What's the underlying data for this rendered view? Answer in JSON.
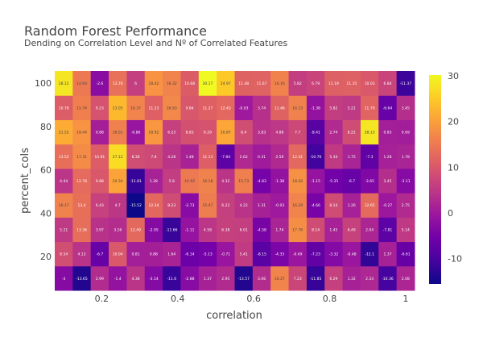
{
  "chart_data": {
    "type": "heatmap",
    "title": "Random Forest Performance",
    "subtitle": "Dending on Correlation Level and Nº of Correlated Features",
    "xlabel": "correlation",
    "ylabel": "percent_cols",
    "colorscale": "plasma",
    "zrange": [
      -15.52,
      30.17
    ],
    "x": [
      0.1,
      0.1474,
      0.1947,
      0.2421,
      0.2895,
      0.3368,
      0.3842,
      0.4316,
      0.4789,
      0.5263,
      0.5737,
      0.6211,
      0.6684,
      0.7158,
      0.7632,
      0.8105,
      0.8579,
      0.9053,
      0.9526,
      1.0
    ],
    "y": [
      10,
      21.25,
      32.5,
      43.75,
      55,
      66.25,
      77.5,
      88.75,
      100
    ],
    "x_ticks": [
      "0.2",
      "0.4",
      "0.6",
      "0.8",
      "1"
    ],
    "x_tick_values": [
      0.2,
      0.4,
      0.6,
      0.8,
      1
    ],
    "y_ticks": [
      "20",
      "40",
      "60",
      "80",
      "100"
    ],
    "y_tick_values": [
      20,
      40,
      60,
      80,
      100
    ],
    "colorbar_ticks": [
      "-10",
      "0",
      "10",
      "20",
      "30"
    ],
    "colorbar_tick_values": [
      -10,
      0,
      10,
      20,
      30
    ],
    "z": [
      [
        -3,
        -13.65,
        2.99,
        -1.4,
        4.38,
        -3.14,
        -11.6,
        -2.88,
        1.37,
        2.95,
        -13.57,
        3.06,
        16.27,
        7.23,
        -11.85,
        6.29,
        1.32,
        2.33,
        -10.36,
        2.08
      ],
      [
        8.54,
        4.13,
        -6.7,
        10.04,
        0.81,
        0.88,
        1.64,
        -6.14,
        -5.13,
        -0.71,
        5.41,
        -8.15,
        -4.33,
        -0.49,
        -7.23,
        -3.32,
        -0.48,
        -12.1,
        1.37,
        -6.61
      ],
      [
        5.21,
        13.36,
        3.97,
        3.16,
        12.49,
        -2.95,
        -11.66,
        -1.11,
        4.58,
        6.38,
        6.01,
        -4.58,
        1.74,
        17.76,
        8.14,
        1.45,
        6.49,
        2.04,
        -7.81,
        5.14
      ],
      [
        16.17,
        13.4,
        6.43,
        4.7,
        -15.52,
        12.34,
        8.23,
        -2.73,
        15.47,
        6.22,
        4.22,
        1.31,
        -0.03,
        16.29,
        -4.66,
        8.14,
        1.26,
        12.65,
        -0.27,
        2.75
      ],
      [
        4.44,
        12.78,
        9.88,
        20.34,
        -11.81,
        1.38,
        5.8,
        14.92,
        16.18,
        4.32,
        15.73,
        -4.83,
        -1.38,
        18.02,
        -1.15,
        -5.35,
        -6.7,
        -3.65,
        3.45,
        -3.11
      ],
      [
        13.52,
        17.31,
        10.81,
        27.12,
        8.36,
        7.8,
        4.28,
        1.48,
        11.13,
        -7.84,
        2.62,
        0.31,
        2.59,
        12.41,
        -10.76,
        5.34,
        1.75,
        -7.3,
        1.28,
        1.78
      ],
      [
        21.52,
        18.44,
        0.88,
        16.01,
        -0.86,
        18.92,
        6.23,
        8.83,
        9.29,
        20.87,
        8.4,
        3.83,
        4.88,
        7.7,
        -8.41,
        2.74,
        8.21,
        28.13,
        0.83,
        0.69
      ],
      [
        10.78,
        15.74,
        9.23,
        23.05,
        16.37,
        11.23,
        16.93,
        9.84,
        11.27,
        12.43,
        -0.03,
        3.74,
        11.46,
        16.13,
        -1.38,
        5.82,
        5.21,
        11.79,
        -6.64,
        3.45
      ],
      [
        28.12,
        14.93,
        -2.6,
        13.76,
        6,
        18.42,
        16.32,
        10.68,
        30.17,
        24.97,
        11.48,
        11.67,
        16.16,
        5.82,
        6.79,
        11.19,
        11.35,
        10.03,
        6.84,
        -11.37
      ]
    ]
  }
}
